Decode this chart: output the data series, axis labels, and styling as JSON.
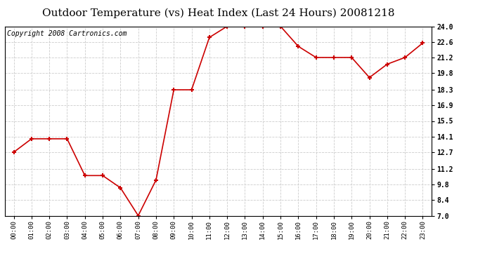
{
  "title": "Outdoor Temperature (vs) Heat Index (Last 24 Hours) 20081218",
  "copyright": "Copyright 2008 Cartronics.com",
  "x_labels": [
    "00:00",
    "01:00",
    "02:00",
    "03:00",
    "04:00",
    "05:00",
    "06:00",
    "07:00",
    "08:00",
    "09:00",
    "10:00",
    "11:00",
    "12:00",
    "13:00",
    "14:00",
    "15:00",
    "16:00",
    "17:00",
    "18:00",
    "19:00",
    "20:00",
    "21:00",
    "22:00",
    "23:00"
  ],
  "y_values": [
    12.7,
    13.9,
    13.9,
    13.9,
    10.6,
    10.6,
    9.5,
    7.0,
    10.2,
    18.3,
    18.3,
    23.0,
    24.0,
    24.0,
    24.0,
    24.0,
    22.2,
    21.2,
    21.2,
    21.2,
    19.4,
    20.6,
    21.2,
    22.5
  ],
  "y_ticks": [
    7.0,
    8.4,
    9.8,
    11.2,
    12.7,
    14.1,
    15.5,
    16.9,
    18.3,
    19.8,
    21.2,
    22.6,
    24.0
  ],
  "y_min": 7.0,
  "y_max": 24.0,
  "line_color": "#cc0000",
  "marker_color": "#cc0000",
  "bg_color": "#ffffff",
  "grid_color": "#cccccc",
  "title_fontsize": 11,
  "copyright_fontsize": 7
}
